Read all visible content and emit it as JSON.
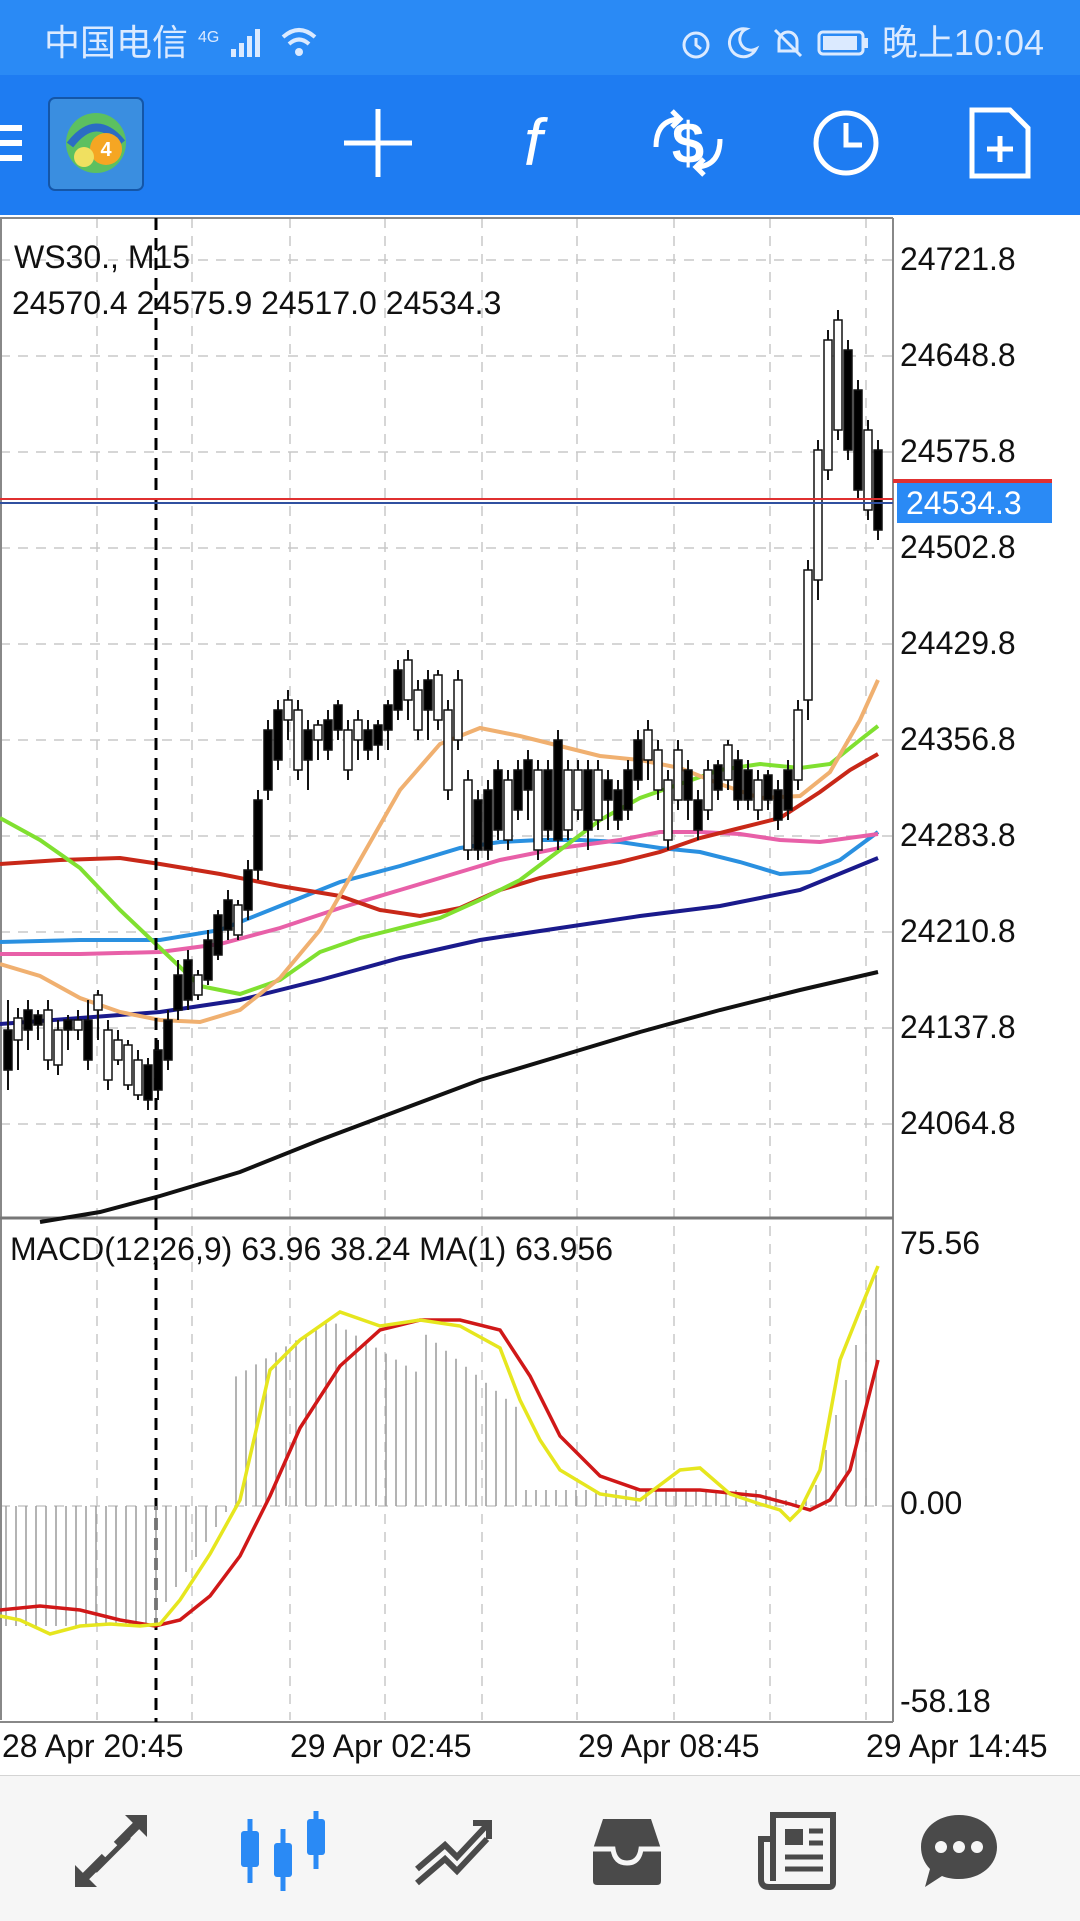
{
  "status_bar": {
    "carrier": "中国电信",
    "network": "4G",
    "time": "晚上10:04",
    "icons": [
      "signal-icon",
      "wifi-icon",
      "alarm-icon",
      "moon-icon",
      "mute-bell-icon",
      "battery-icon"
    ]
  },
  "toolbar": {
    "icons": [
      "menu-icon",
      "app-logo",
      "crosshair-icon",
      "function-icon",
      "trade-icon",
      "clock-icon",
      "new-document-icon"
    ],
    "logo_badge": "4"
  },
  "chart": {
    "symbol": "WS30., M15",
    "ohlc": "24570.4 24575.9 24517.0 24534.3",
    "current_price": "24534.3",
    "price_ticks": [
      "24721.8",
      "24648.8",
      "24575.8",
      "24502.8",
      "24429.8",
      "24356.8",
      "24283.8",
      "24210.8",
      "24137.8",
      "24064.8"
    ],
    "macd_label": "MACD(12,26,9) 63.96 38.24 MA(1) 63.956",
    "macd_ticks": [
      "75.56",
      "0.00",
      "-58.18"
    ],
    "time_ticks": [
      "28 Apr 20:45",
      "29 Apr 02:45",
      "29 Apr 08:45",
      "29 Apr 14:45"
    ],
    "colors": {
      "bull_candle": "#ffffff",
      "bear_candle": "#000000",
      "price_line": "#e03030",
      "price_label_bg": "#2a8af5",
      "macd_signal": "#d01818",
      "macd_line": "#e6e61e",
      "ma_black": "#111111",
      "ma_navy": "#1a1a8c",
      "ma_blue": "#2a90e0",
      "ma_pink": "#e860a8",
      "ma_red": "#c82818",
      "ma_green": "#80e030",
      "ma_orange": "#f0b070"
    }
  },
  "bottom_nav": {
    "items": [
      "quotes-icon",
      "chart-icon",
      "trade-icon",
      "history-icon",
      "news-icon",
      "messages-icon"
    ],
    "active": "chart-icon"
  }
}
